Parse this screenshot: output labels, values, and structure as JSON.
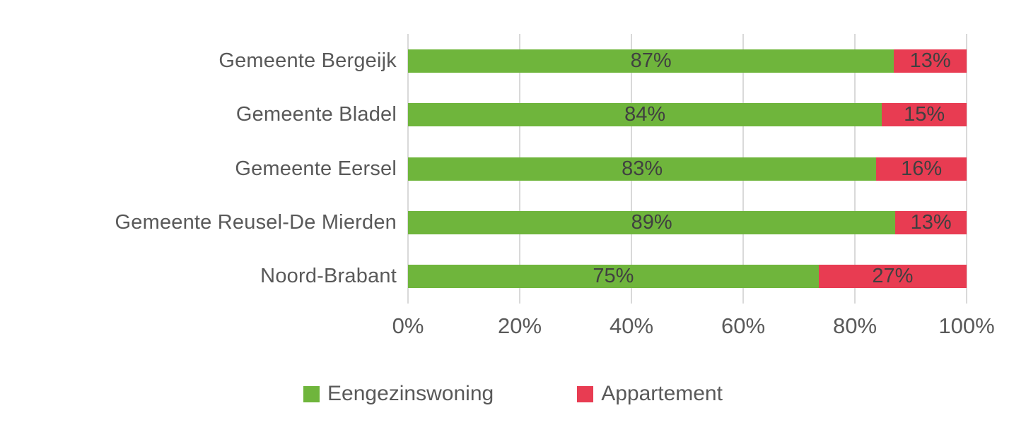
{
  "chart_data": {
    "type": "bar",
    "orientation": "horizontal",
    "stacked": true,
    "title": "",
    "categories": [
      "Gemeente Bergeijk",
      "Gemeente Bladel",
      "Gemeente Eersel",
      "Gemeente Reusel-De Mierden",
      "Noord-Brabant"
    ],
    "series": [
      {
        "name": "Eengezinswoning",
        "color": "#6fb53c",
        "values": [
          87,
          84,
          83,
          89,
          75
        ],
        "labels": [
          "87%",
          "84%",
          "83%",
          "89%",
          "75%"
        ]
      },
      {
        "name": "Appartement",
        "color": "#e83c52",
        "values": [
          13,
          15,
          16,
          13,
          27
        ],
        "labels": [
          "13%",
          "15%",
          "16%",
          "13%",
          "27%"
        ]
      }
    ],
    "x_axis": {
      "min": 0,
      "max": 100,
      "ticks": [
        "0%",
        "20%",
        "40%",
        "60%",
        "80%",
        "100%"
      ]
    },
    "grid": true,
    "legend_position": "bottom"
  },
  "styles": {
    "grid_color": "#d9d9d9",
    "axis_label_color": "#595959",
    "data_label_color": "#404040",
    "background": "#ffffff"
  }
}
